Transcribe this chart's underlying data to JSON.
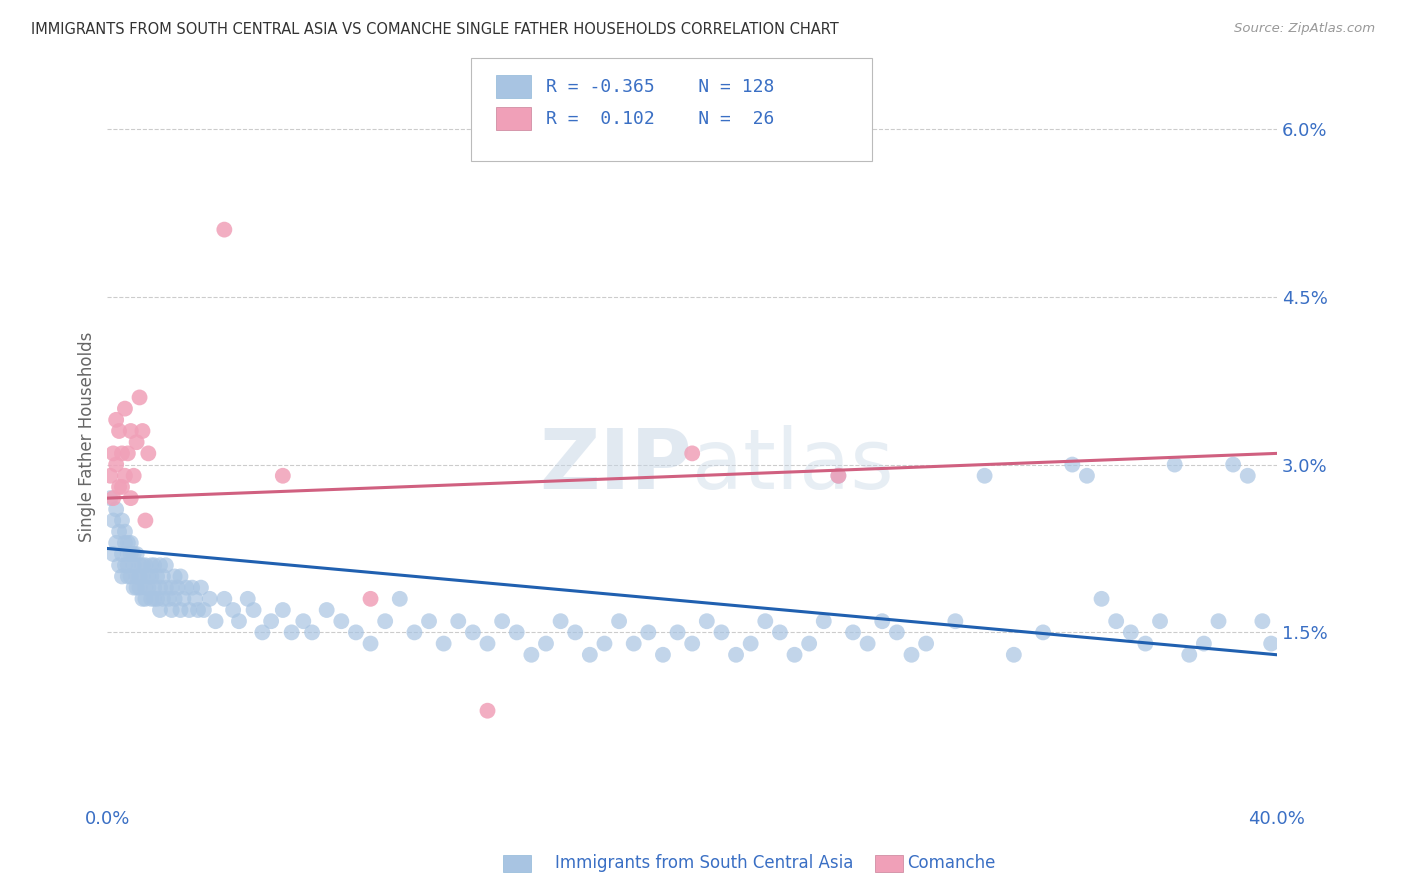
{
  "title": "IMMIGRANTS FROM SOUTH CENTRAL ASIA VS COMANCHE SINGLE FATHER HOUSEHOLDS CORRELATION CHART",
  "source": "Source: ZipAtlas.com",
  "ylabel": "Single Father Households",
  "xlim": [
    0.0,
    0.4
  ],
  "ylim": [
    0.0,
    0.065
  ],
  "xtick_positions": [
    0.0,
    0.1,
    0.2,
    0.3,
    0.4
  ],
  "xticklabels": [
    "0.0%",
    "",
    "",
    "",
    "40.0%"
  ],
  "yticks_right": [
    0.015,
    0.03,
    0.045,
    0.06
  ],
  "yticklabels_right": [
    "1.5%",
    "3.0%",
    "4.5%",
    "6.0%"
  ],
  "watermark": "ZIPAtlas",
  "blue_color": "#a8c4e2",
  "pink_color": "#f0a0b8",
  "line_blue": "#2060b0",
  "line_pink": "#d06080",
  "legend_text_color": "#3a6fc4",
  "grid_color": "#cccccc",
  "blue_line_y0": 0.0225,
  "blue_line_y1": 0.013,
  "pink_line_y0": 0.027,
  "pink_line_y1": 0.031,
  "blue_scatter": [
    [
      0.001,
      0.027
    ],
    [
      0.002,
      0.025
    ],
    [
      0.002,
      0.022
    ],
    [
      0.003,
      0.026
    ],
    [
      0.003,
      0.023
    ],
    [
      0.004,
      0.024
    ],
    [
      0.004,
      0.021
    ],
    [
      0.005,
      0.025
    ],
    [
      0.005,
      0.022
    ],
    [
      0.005,
      0.02
    ],
    [
      0.006,
      0.023
    ],
    [
      0.006,
      0.021
    ],
    [
      0.006,
      0.024
    ],
    [
      0.007,
      0.022
    ],
    [
      0.007,
      0.02
    ],
    [
      0.007,
      0.023
    ],
    [
      0.007,
      0.021
    ],
    [
      0.008,
      0.022
    ],
    [
      0.008,
      0.02
    ],
    [
      0.008,
      0.023
    ],
    [
      0.009,
      0.021
    ],
    [
      0.009,
      0.019
    ],
    [
      0.009,
      0.022
    ],
    [
      0.01,
      0.02
    ],
    [
      0.01,
      0.022
    ],
    [
      0.01,
      0.019
    ],
    [
      0.011,
      0.021
    ],
    [
      0.011,
      0.019
    ],
    [
      0.011,
      0.02
    ],
    [
      0.012,
      0.021
    ],
    [
      0.012,
      0.018
    ],
    [
      0.012,
      0.02
    ],
    [
      0.013,
      0.019
    ],
    [
      0.013,
      0.021
    ],
    [
      0.013,
      0.018
    ],
    [
      0.014,
      0.02
    ],
    [
      0.014,
      0.019
    ],
    [
      0.015,
      0.021
    ],
    [
      0.015,
      0.018
    ],
    [
      0.015,
      0.02
    ],
    [
      0.016,
      0.019
    ],
    [
      0.016,
      0.021
    ],
    [
      0.016,
      0.018
    ],
    [
      0.017,
      0.02
    ],
    [
      0.017,
      0.018
    ],
    [
      0.018,
      0.019
    ],
    [
      0.018,
      0.021
    ],
    [
      0.018,
      0.017
    ],
    [
      0.019,
      0.02
    ],
    [
      0.019,
      0.018
    ],
    [
      0.02,
      0.019
    ],
    [
      0.02,
      0.021
    ],
    [
      0.021,
      0.018
    ],
    [
      0.022,
      0.019
    ],
    [
      0.022,
      0.017
    ],
    [
      0.023,
      0.02
    ],
    [
      0.023,
      0.018
    ],
    [
      0.024,
      0.019
    ],
    [
      0.025,
      0.017
    ],
    [
      0.025,
      0.02
    ],
    [
      0.026,
      0.018
    ],
    [
      0.027,
      0.019
    ],
    [
      0.028,
      0.017
    ],
    [
      0.029,
      0.019
    ],
    [
      0.03,
      0.018
    ],
    [
      0.031,
      0.017
    ],
    [
      0.032,
      0.019
    ],
    [
      0.033,
      0.017
    ],
    [
      0.035,
      0.018
    ],
    [
      0.037,
      0.016
    ],
    [
      0.04,
      0.018
    ],
    [
      0.043,
      0.017
    ],
    [
      0.045,
      0.016
    ],
    [
      0.048,
      0.018
    ],
    [
      0.05,
      0.017
    ],
    [
      0.053,
      0.015
    ],
    [
      0.056,
      0.016
    ],
    [
      0.06,
      0.017
    ],
    [
      0.063,
      0.015
    ],
    [
      0.067,
      0.016
    ],
    [
      0.07,
      0.015
    ],
    [
      0.075,
      0.017
    ],
    [
      0.08,
      0.016
    ],
    [
      0.085,
      0.015
    ],
    [
      0.09,
      0.014
    ],
    [
      0.095,
      0.016
    ],
    [
      0.1,
      0.018
    ],
    [
      0.105,
      0.015
    ],
    [
      0.11,
      0.016
    ],
    [
      0.115,
      0.014
    ],
    [
      0.12,
      0.016
    ],
    [
      0.125,
      0.015
    ],
    [
      0.13,
      0.014
    ],
    [
      0.135,
      0.016
    ],
    [
      0.14,
      0.015
    ],
    [
      0.145,
      0.013
    ],
    [
      0.15,
      0.014
    ],
    [
      0.155,
      0.016
    ],
    [
      0.16,
      0.015
    ],
    [
      0.165,
      0.013
    ],
    [
      0.17,
      0.014
    ],
    [
      0.175,
      0.016
    ],
    [
      0.18,
      0.014
    ],
    [
      0.185,
      0.015
    ],
    [
      0.19,
      0.013
    ],
    [
      0.195,
      0.015
    ],
    [
      0.2,
      0.014
    ],
    [
      0.205,
      0.016
    ],
    [
      0.21,
      0.015
    ],
    [
      0.215,
      0.013
    ],
    [
      0.22,
      0.014
    ],
    [
      0.225,
      0.016
    ],
    [
      0.23,
      0.015
    ],
    [
      0.235,
      0.013
    ],
    [
      0.24,
      0.014
    ],
    [
      0.245,
      0.016
    ],
    [
      0.25,
      0.029
    ],
    [
      0.255,
      0.015
    ],
    [
      0.26,
      0.014
    ],
    [
      0.265,
      0.016
    ],
    [
      0.27,
      0.015
    ],
    [
      0.275,
      0.013
    ],
    [
      0.28,
      0.014
    ],
    [
      0.29,
      0.016
    ],
    [
      0.3,
      0.029
    ],
    [
      0.31,
      0.013
    ],
    [
      0.32,
      0.015
    ],
    [
      0.33,
      0.03
    ],
    [
      0.335,
      0.029
    ],
    [
      0.34,
      0.018
    ],
    [
      0.345,
      0.016
    ],
    [
      0.35,
      0.015
    ],
    [
      0.355,
      0.014
    ],
    [
      0.36,
      0.016
    ],
    [
      0.365,
      0.03
    ],
    [
      0.37,
      0.013
    ],
    [
      0.375,
      0.014
    ],
    [
      0.38,
      0.016
    ],
    [
      0.385,
      0.03
    ],
    [
      0.39,
      0.029
    ],
    [
      0.395,
      0.016
    ],
    [
      0.398,
      0.014
    ]
  ],
  "pink_scatter": [
    [
      0.001,
      0.029
    ],
    [
      0.002,
      0.031
    ],
    [
      0.002,
      0.027
    ],
    [
      0.003,
      0.034
    ],
    [
      0.003,
      0.03
    ],
    [
      0.004,
      0.028
    ],
    [
      0.004,
      0.033
    ],
    [
      0.005,
      0.031
    ],
    [
      0.005,
      0.028
    ],
    [
      0.006,
      0.035
    ],
    [
      0.006,
      0.029
    ],
    [
      0.007,
      0.031
    ],
    [
      0.008,
      0.033
    ],
    [
      0.008,
      0.027
    ],
    [
      0.009,
      0.029
    ],
    [
      0.01,
      0.032
    ],
    [
      0.011,
      0.036
    ],
    [
      0.012,
      0.033
    ],
    [
      0.013,
      0.025
    ],
    [
      0.014,
      0.031
    ],
    [
      0.04,
      0.051
    ],
    [
      0.06,
      0.029
    ],
    [
      0.09,
      0.018
    ],
    [
      0.13,
      0.008
    ],
    [
      0.2,
      0.031
    ],
    [
      0.25,
      0.029
    ]
  ]
}
